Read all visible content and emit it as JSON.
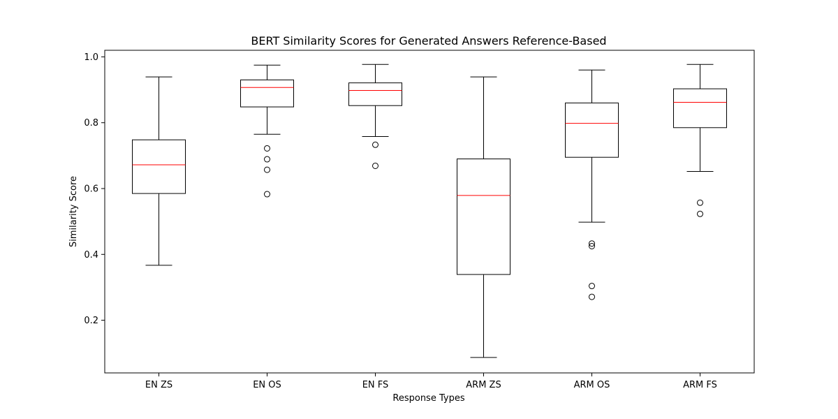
{
  "chart_data": {
    "type": "box",
    "title": "BERT Similarity Scores for Generated Answers Reference-Based",
    "xlabel": "Response Types",
    "ylabel": "Similarity Score",
    "ylim": [
      0.04,
      1.02
    ],
    "yticks": [
      0.2,
      0.4,
      0.6,
      0.8,
      1.0
    ],
    "ytick_labels": [
      "0.2",
      "0.4",
      "0.6",
      "0.8",
      "1.0"
    ],
    "grid": false,
    "categories": [
      "EN ZS",
      "EN OS",
      "EN FS",
      "ARM ZS",
      "ARM OS",
      "ARM FS"
    ],
    "boxes": [
      {
        "category": "EN ZS",
        "whisker_low": 0.367,
        "q1": 0.585,
        "median": 0.672,
        "q3": 0.748,
        "whisker_high": 0.939,
        "outliers": []
      },
      {
        "category": "EN OS",
        "whisker_low": 0.765,
        "q1": 0.848,
        "median": 0.907,
        "q3": 0.93,
        "whisker_high": 0.975,
        "outliers": [
          0.722,
          0.689,
          0.657,
          0.583
        ]
      },
      {
        "category": "EN FS",
        "whisker_low": 0.758,
        "q1": 0.852,
        "median": 0.898,
        "q3": 0.921,
        "whisker_high": 0.977,
        "outliers": [
          0.733,
          0.669
        ]
      },
      {
        "category": "ARM ZS",
        "whisker_low": 0.087,
        "q1": 0.339,
        "median": 0.579,
        "q3": 0.69,
        "whisker_high": 0.939,
        "outliers": []
      },
      {
        "category": "ARM OS",
        "whisker_low": 0.498,
        "q1": 0.695,
        "median": 0.798,
        "q3": 0.86,
        "whisker_high": 0.96,
        "outliers": [
          0.433,
          0.425,
          0.304,
          0.271
        ]
      },
      {
        "category": "ARM FS",
        "whisker_low": 0.652,
        "q1": 0.785,
        "median": 0.862,
        "q3": 0.903,
        "whisker_high": 0.977,
        "outliers": [
          0.557,
          0.523
        ]
      }
    ],
    "colors": {
      "box": "#000000",
      "median": "#ff0000",
      "outlier": "#000000"
    }
  }
}
